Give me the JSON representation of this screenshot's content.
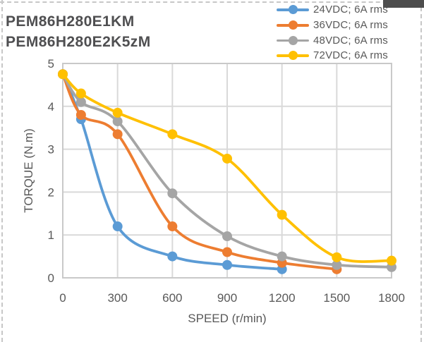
{
  "window": {
    "corner_bar": "window-corner-fragment",
    "border_style": "dashed-selection-border"
  },
  "title": {
    "line1": "PEM86H280E1KM",
    "line2": "PEM86H280E2K5zM"
  },
  "chart_data": {
    "type": "line",
    "title": "PEM86H280E1KM / PEM86H280E2K5zM torque-speed curves",
    "xlabel": "SPEED (r/min)",
    "ylabel": "TORQUE (N.m)",
    "xlim": [
      0,
      1800
    ],
    "ylim": [
      0,
      5
    ],
    "x_ticks": [
      0,
      300,
      600,
      900,
      1200,
      1500,
      1800
    ],
    "y_ticks": [
      0,
      1,
      2,
      3,
      4,
      5
    ],
    "grid": true,
    "smooth": true,
    "legend_position": "top-right",
    "series": [
      {
        "name": "24VDC; 6A rms",
        "color": "#5B9BD5",
        "points": [
          [
            0,
            4.75
          ],
          [
            100,
            3.7
          ],
          [
            300,
            1.2
          ],
          [
            600,
            0.5
          ],
          [
            900,
            0.3
          ],
          [
            1200,
            0.2
          ]
        ]
      },
      {
        "name": "36VDC; 6A rms",
        "color": "#ED7D31",
        "points": [
          [
            0,
            4.75
          ],
          [
            100,
            3.8
          ],
          [
            300,
            3.35
          ],
          [
            600,
            1.2
          ],
          [
            900,
            0.6
          ],
          [
            1200,
            0.35
          ],
          [
            1500,
            0.2
          ]
        ]
      },
      {
        "name": "48VDC; 6A rms",
        "color": "#A5A5A5",
        "points": [
          [
            0,
            4.75
          ],
          [
            100,
            4.1
          ],
          [
            300,
            3.65
          ],
          [
            600,
            1.97
          ],
          [
            900,
            0.97
          ],
          [
            1200,
            0.5
          ],
          [
            1500,
            0.3
          ],
          [
            1800,
            0.25
          ]
        ]
      },
      {
        "name": "72VDC; 6A rms",
        "color": "#FFC000",
        "points": [
          [
            0,
            4.75
          ],
          [
            100,
            4.3
          ],
          [
            300,
            3.85
          ],
          [
            600,
            3.35
          ],
          [
            900,
            2.78
          ],
          [
            1200,
            1.47
          ],
          [
            1500,
            0.48
          ],
          [
            1800,
            0.4
          ]
        ]
      }
    ],
    "colors": {
      "gridline": "#d9d9d9",
      "frame": "#c9c9c9",
      "axis_text": "#595959",
      "title_text": "#4f4f51"
    }
  }
}
